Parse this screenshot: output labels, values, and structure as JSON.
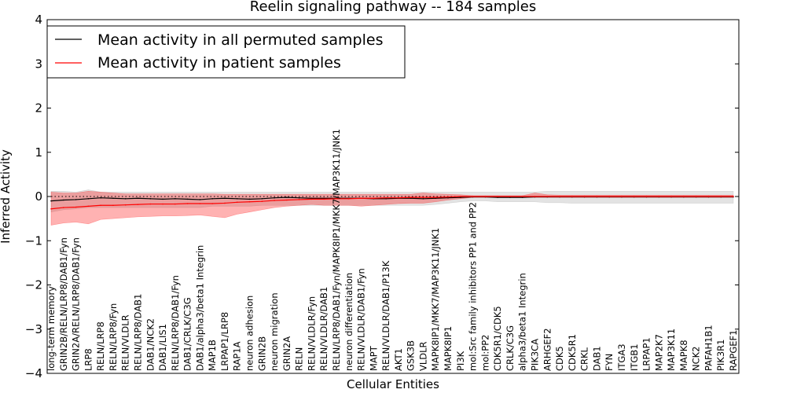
{
  "chart_data": {
    "type": "line",
    "title": "Reelin signaling pathway -- 184 samples",
    "xlabel": "Cellular Entities",
    "ylabel": "Inferred Activity",
    "ylim": [
      -4,
      4
    ],
    "yticks": [
      -4,
      -3,
      -2,
      -1,
      0,
      1,
      2,
      3,
      4
    ],
    "ytick_labels": [
      "−4",
      "−3",
      "−2",
      "−1",
      "0",
      "1",
      "2",
      "3",
      "4"
    ],
    "legend_position": "upper-left",
    "zero_line": "dotted",
    "categories": [
      "long-term memory",
      "GRIN2B/RELN/LRP8/DAB1/Fyn",
      "GRIN2A/RELN/LRP8/DAB1/Fyn",
      "LRP8",
      "RELN/LRP8",
      "RELN/LRP8/Fyn",
      "RELN/VLDLR",
      "RELN/LRP8/DAB1",
      "DAB1/NCK2",
      "DAB1/LIS1",
      "RELN/LRP8/DAB1/Fyn",
      "DAB1/CRLK/C3G",
      "DAB1/alpha3/beta1 Integrin",
      "MAP1B",
      "LRPAP1/LRP8",
      "RAP1A",
      "neuron adhesion",
      "GRIN2B",
      "neuron migration",
      "GRIN2A",
      "RELN",
      "RELN/VLDLR/Fyn",
      "RELN/VLDLR/DAB1",
      "RELN/LRP8/DAB1/Fyn/MAPK8IP1/MKK7/MAP3K11/JNK1",
      "neuron differentiation",
      "RELN/VLDLR/DAB1/Fyn",
      "MAPT",
      "RELN/VLDLR/DAB1/P13K",
      "AKT1",
      "GSK3B",
      "VLDLR",
      "MAPK8IP1/MKK7/MAP3K11/JNK1",
      "MAPK8IP1",
      "PI3K",
      "mol:Src family inhibitors PP1 and PP2",
      "mol:PP2",
      "CDK5R1/CDK5",
      "CRLK/C3G",
      "alpha3/beta1 Integrin",
      "PIK3CA",
      "ARHGEF2",
      "CDK5",
      "CDK5R1",
      "CRKL",
      "DAB1",
      "FYN",
      "ITGA3",
      "ITGB1",
      "LRPAP1",
      "MAP2K7",
      "MAP3K11",
      "MAPK8",
      "NCK2",
      "PAFAH1B1",
      "PIK3R1",
      "RAPGEF1"
    ],
    "series": [
      {
        "name": "Mean activity in all permuted samples",
        "color": "#000000",
        "band_color": "#999999",
        "values": [
          -0.1,
          -0.08,
          -0.07,
          -0.05,
          -0.03,
          -0.04,
          -0.05,
          -0.04,
          -0.05,
          -0.06,
          -0.05,
          -0.06,
          -0.07,
          -0.05,
          -0.04,
          -0.05,
          -0.06,
          -0.05,
          -0.03,
          -0.02,
          -0.03,
          -0.04,
          -0.04,
          -0.04,
          -0.04,
          -0.04,
          -0.05,
          -0.05,
          -0.04,
          -0.04,
          -0.05,
          -0.04,
          -0.03,
          -0.02,
          -0.01,
          -0.01,
          -0.02,
          -0.02,
          -0.02,
          -0.01,
          -0.01,
          -0.01,
          -0.01,
          -0.01,
          -0.01,
          -0.01,
          -0.01,
          -0.01,
          -0.01,
          -0.01,
          -0.01,
          -0.01,
          -0.01,
          -0.01,
          -0.01,
          -0.01
        ],
        "band_upper": [
          0.12,
          0.12,
          0.1,
          0.15,
          0.1,
          0.1,
          0.1,
          0.1,
          0.1,
          0.1,
          0.1,
          0.1,
          0.1,
          0.1,
          0.1,
          0.1,
          0.1,
          0.1,
          0.1,
          0.1,
          0.1,
          0.1,
          0.1,
          0.1,
          0.1,
          0.1,
          0.1,
          0.1,
          0.1,
          0.1,
          0.1,
          0.1,
          0.1,
          0.1,
          0.1,
          0.1,
          0.1,
          0.1,
          0.1,
          0.1,
          0.12,
          0.12,
          0.12,
          0.12,
          0.12,
          0.12,
          0.12,
          0.12,
          0.12,
          0.12,
          0.12,
          0.12,
          0.12,
          0.12,
          0.12,
          0.12
        ],
        "band_lower": [
          -0.35,
          -0.3,
          -0.28,
          -0.25,
          -0.25,
          -0.25,
          -0.25,
          -0.25,
          -0.25,
          -0.25,
          -0.25,
          -0.25,
          -0.25,
          -0.22,
          -0.22,
          -0.22,
          -0.22,
          -0.2,
          -0.2,
          -0.2,
          -0.2,
          -0.2,
          -0.2,
          -0.2,
          -0.2,
          -0.2,
          -0.2,
          -0.2,
          -0.2,
          -0.2,
          -0.2,
          -0.18,
          -0.15,
          -0.12,
          -0.1,
          -0.1,
          -0.12,
          -0.12,
          -0.12,
          -0.12,
          -0.14,
          -0.14,
          -0.15,
          -0.15,
          -0.15,
          -0.15,
          -0.15,
          -0.15,
          -0.15,
          -0.15,
          -0.15,
          -0.15,
          -0.15,
          -0.15,
          -0.15,
          -0.15
        ]
      },
      {
        "name": "Mean activity in patient samples",
        "color": "#ff0000",
        "band_color": "#ff0000",
        "values": [
          -0.28,
          -0.25,
          -0.24,
          -0.22,
          -0.2,
          -0.2,
          -0.19,
          -0.18,
          -0.17,
          -0.17,
          -0.17,
          -0.16,
          -0.16,
          -0.16,
          -0.15,
          -0.13,
          -0.12,
          -0.11,
          -0.09,
          -0.08,
          -0.07,
          -0.06,
          -0.06,
          -0.05,
          -0.05,
          -0.04,
          -0.04,
          -0.03,
          -0.03,
          -0.02,
          -0.02,
          -0.02,
          -0.01,
          0.0,
          0.0,
          0.0,
          0.0,
          0.0,
          0.0,
          0.0,
          0.0,
          0.0,
          0.0,
          0.0,
          0.0,
          0.0,
          0.0,
          0.0,
          0.0,
          0.0,
          0.0,
          0.0,
          0.0,
          0.0,
          0.0,
          0.0
        ],
        "band_upper": [
          0.1,
          0.08,
          0.08,
          0.12,
          0.1,
          0.08,
          0.06,
          0.06,
          0.06,
          0.06,
          0.06,
          0.06,
          0.06,
          0.06,
          0.05,
          0.05,
          0.05,
          0.05,
          0.05,
          0.05,
          0.05,
          0.05,
          0.05,
          0.05,
          0.05,
          0.05,
          0.05,
          0.05,
          0.05,
          0.05,
          0.08,
          0.06,
          0.05,
          0.04,
          0.02,
          0.02,
          0.02,
          0.02,
          0.02,
          0.08,
          0.04,
          0.03,
          0.03,
          0.03,
          0.03,
          0.03,
          0.03,
          0.03,
          0.03,
          0.03,
          0.03,
          0.03,
          0.03,
          0.03,
          0.03,
          0.03
        ],
        "band_lower": [
          -0.65,
          -0.6,
          -0.58,
          -0.62,
          -0.52,
          -0.5,
          -0.48,
          -0.46,
          -0.45,
          -0.44,
          -0.44,
          -0.43,
          -0.42,
          -0.45,
          -0.48,
          -0.4,
          -0.35,
          -0.3,
          -0.25,
          -0.22,
          -0.2,
          -0.18,
          -0.2,
          -0.2,
          -0.2,
          -0.22,
          -0.2,
          -0.18,
          -0.16,
          -0.15,
          -0.15,
          -0.12,
          -0.08,
          -0.05,
          -0.02,
          -0.02,
          -0.02,
          -0.02,
          -0.02,
          -0.02,
          -0.02,
          -0.02,
          -0.02,
          -0.02,
          -0.02,
          -0.02,
          -0.02,
          -0.02,
          -0.02,
          -0.02,
          -0.02,
          -0.02,
          -0.02,
          -0.02,
          -0.02,
          -0.02
        ]
      }
    ]
  }
}
